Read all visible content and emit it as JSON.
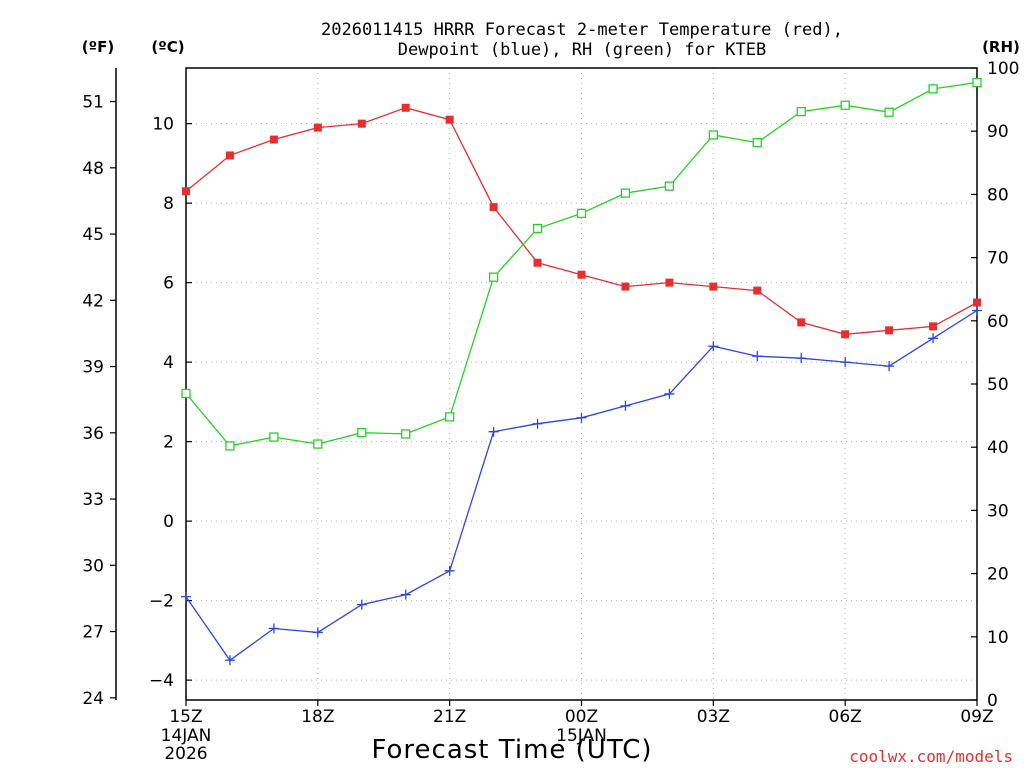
{
  "chart_data": {
    "type": "line",
    "title_line1": "2026011415 HRRR Forecast 2-meter Temperature (red),",
    "title_line2": "Dewpoint (blue), RH (green) for KTEB",
    "xlabel": "Forecast Time (UTC)",
    "credit": "coolwx.com/models",
    "units": {
      "fahrenheit": "(ºF)",
      "celsius": "(ºC)",
      "rh": "(RH)"
    },
    "x_tick_labels": [
      "15Z",
      "18Z",
      "21Z",
      "00Z",
      "03Z",
      "06Z",
      "09Z"
    ],
    "x_tick_hours": [
      0,
      3,
      6,
      9,
      12,
      15,
      18
    ],
    "date_labels": [
      {
        "hour": 0,
        "day": "14JAN",
        "year": "2026"
      },
      {
        "hour": 9,
        "day": "15JAN",
        "year": ""
      }
    ],
    "x_range_hours": [
      0,
      18
    ],
    "celsius_axis": {
      "range": [
        -4.5,
        11.4
      ],
      "ticks": [
        -4,
        -2,
        0,
        2,
        4,
        6,
        8,
        10
      ]
    },
    "fahrenheit_axis": {
      "ticks": [
        24,
        27,
        30,
        33,
        36,
        39,
        42,
        45,
        48,
        51
      ]
    },
    "rh_axis": {
      "range": [
        0,
        100
      ],
      "ticks": [
        0,
        10,
        20,
        30,
        40,
        50,
        60,
        70,
        80,
        90,
        100
      ]
    },
    "colors": {
      "temperature": "#e62e2e",
      "dewpoint": "#2b45e6",
      "rh": "#22d422",
      "credit": "#e62e2e"
    },
    "series": [
      {
        "name": "2-meter Temperature",
        "axis": "celsius",
        "marker": "filled-square",
        "values": [
          8.3,
          9.2,
          9.6,
          9.9,
          10.0,
          10.4,
          10.1,
          7.9,
          6.5,
          6.2,
          5.9,
          6.0,
          5.9,
          5.8,
          5.0,
          4.7,
          4.8,
          4.9,
          5.5
        ]
      },
      {
        "name": "Dewpoint",
        "axis": "celsius",
        "marker": "plus",
        "values": [
          -1.9,
          -3.5,
          -2.7,
          -2.8,
          -2.1,
          -1.85,
          -1.25,
          2.25,
          2.45,
          2.6,
          2.9,
          3.2,
          4.4,
          4.15,
          4.1,
          4.0,
          3.9,
          4.6,
          5.3
        ]
      },
      {
        "name": "Relative Humidity",
        "axis": "rh",
        "marker": "open-square",
        "values": [
          48.5,
          40.2,
          41.6,
          40.5,
          42.3,
          42.1,
          44.8,
          66.9,
          74.6,
          77.0,
          80.2,
          81.3,
          89.4,
          88.2,
          93.1,
          94.1,
          93.0,
          96.7,
          97.7
        ]
      }
    ]
  }
}
